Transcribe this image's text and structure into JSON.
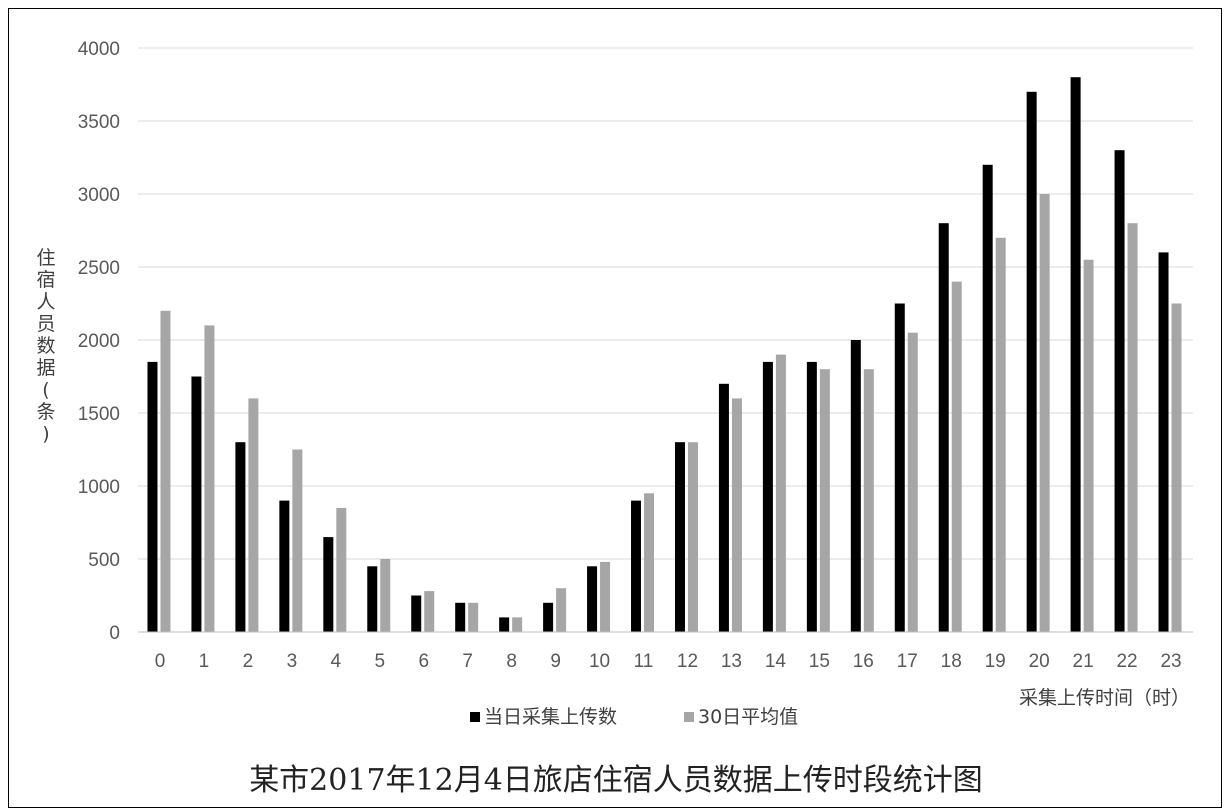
{
  "chart_data": {
    "type": "bar",
    "title": "某市2017年12月4日旅店住宿人员数据上传时段统计图",
    "xlabel": "采集上传时间（时）",
    "ylabel": "住宿人员数据(条)",
    "ylim": [
      0,
      4000
    ],
    "yticks": [
      0,
      500,
      1000,
      1500,
      2000,
      2500,
      3000,
      3500,
      4000
    ],
    "grid": true,
    "legend_position": "bottom",
    "categories": [
      "0",
      "1",
      "2",
      "3",
      "4",
      "5",
      "6",
      "7",
      "8",
      "9",
      "10",
      "11",
      "12",
      "13",
      "14",
      "15",
      "16",
      "17",
      "18",
      "19",
      "20",
      "21",
      "22",
      "23"
    ],
    "series": [
      {
        "name": "当日采集上传数",
        "color": "#000000",
        "values": [
          1850,
          1750,
          1300,
          900,
          650,
          450,
          250,
          200,
          100,
          200,
          450,
          900,
          1300,
          1700,
          1850,
          1850,
          2000,
          2250,
          2800,
          3200,
          3700,
          3800,
          3300,
          2600
        ]
      },
      {
        "name": "30日平均值",
        "color": "#a6a6a6",
        "values": [
          2200,
          2100,
          1600,
          1250,
          850,
          500,
          280,
          200,
          100,
          300,
          480,
          950,
          1300,
          1600,
          1900,
          1800,
          1800,
          2050,
          2400,
          2700,
          3000,
          2550,
          2800,
          2250
        ]
      }
    ]
  }
}
